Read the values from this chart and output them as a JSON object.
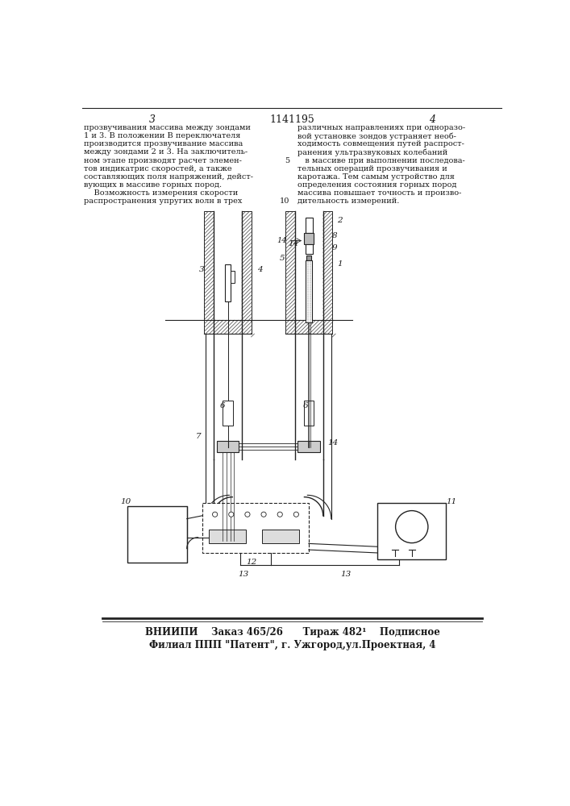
{
  "bg_color": "#ffffff",
  "page_width": 7.07,
  "page_height": 10.0,
  "left_text_lines": [
    "прозвучивания массива между зондами",
    "1 и 3. В положении В переключателя",
    "производится прозвучивание массива",
    "между зондами 2 и 3. На заключитель-",
    "ном этапе производят расчет элемен-",
    "тов индикатрис скоростей, а также",
    "составляющих поля напряжений, дейст-",
    "вующих в массиве горных пород.",
    "    Возможность измерения скорости",
    "распространения упругих волн в трех"
  ],
  "right_text_lines": [
    "различных направлениях при одноразо-",
    "вой установке зондов устраняет необ-",
    "ходимость совмещения путей распрост-",
    "ранения ультразвуковых колебаний",
    "   в массиве при выполнении последова-",
    "тельных операций прозвучивания и",
    "каротажа. Тем самым устройство для",
    "определения состояния горных пород",
    "массива повышает точность и произво-",
    "дительность измерений."
  ],
  "right_text_prefix": [
    "",
    "",
    "",
    "",
    "5",
    "",
    "",
    "",
    "",
    "10"
  ],
  "footer_line1": "ВНИИПИ    Заказ 465/26      Тираж 482¹    Подписное",
  "footer_line2": "Филиал ППП \"Патент\", г. Ужгород,ул.Проектная, 4",
  "text_color": "#1a1a1a",
  "line_color": "#222222",
  "hatch_color": "#444444"
}
